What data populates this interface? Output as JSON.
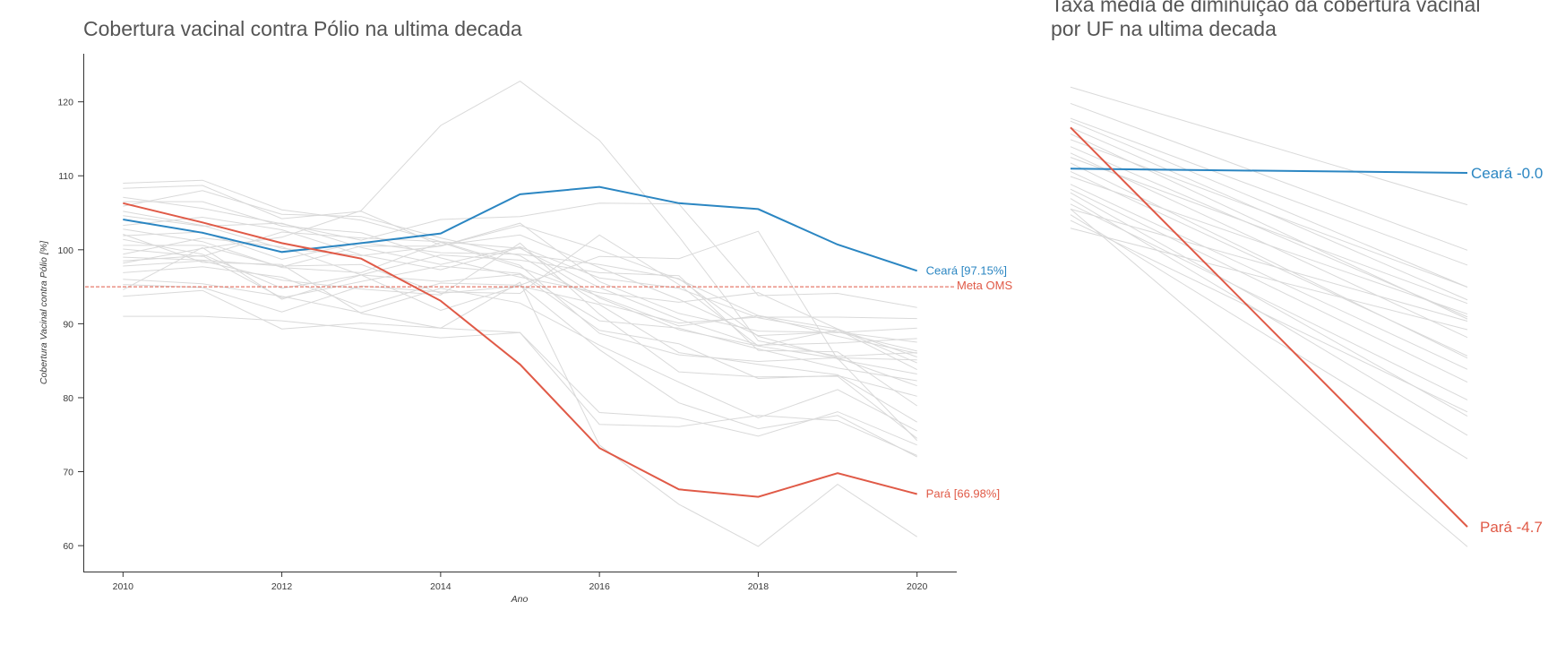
{
  "chart_data": [
    {
      "type": "line",
      "title": "Cobertura vacinal contra Pólio na ultima decada",
      "xlabel": "Ano",
      "ylabel": "Cobertura Vacinal contra Pólio [%]",
      "x": [
        2010,
        2011,
        2012,
        2013,
        2014,
        2015,
        2016,
        2017,
        2018,
        2019,
        2020
      ],
      "xticks": [
        2010,
        2012,
        2014,
        2016,
        2018,
        2020
      ],
      "yticks": [
        60,
        70,
        80,
        90,
        100,
        110,
        120
      ],
      "xlim": [
        2009.5,
        2020.5
      ],
      "ylim": [
        56.5,
        126.5
      ],
      "grid": false,
      "reference_line": {
        "y": 95,
        "label": "Meta OMS",
        "color": "#e05a47"
      },
      "highlight_series": [
        {
          "name": "Ceará",
          "label": "Ceará [97.15%]",
          "color": "#2b86c2",
          "values": [
            104.1,
            102.3,
            99.7,
            100.9,
            102.2,
            107.5,
            108.5,
            106.3,
            105.5,
            100.7,
            97.15
          ]
        },
        {
          "name": "Pará",
          "label": "Pará [66.98%]",
          "color": "#e05a47",
          "values": [
            106.3,
            103.7,
            100.9,
            98.8,
            93.1,
            84.5,
            73.2,
            67.6,
            66.6,
            69.8,
            66.98
          ]
        }
      ],
      "background_color": "#d9d9d9",
      "background_series": [
        [
          109.0,
          109.4,
          105.4,
          104.0,
          101.1,
          100.2,
          94.9,
          90.6,
          87.1,
          87.4,
          88.0
        ],
        [
          108.3,
          108.7,
          104.2,
          105.2,
          100.6,
          102.0,
          97.6,
          93.3,
          88.4,
          88.9,
          86.3
        ],
        [
          107.1,
          105.6,
          103.5,
          101.3,
          104.1,
          104.5,
          106.3,
          106.2,
          93.8,
          94.1,
          92.2
        ],
        [
          106.5,
          106.5,
          103.2,
          102.3,
          98.9,
          96.3,
          94.2,
          92.9,
          94.2,
          89.3,
          84.7
        ],
        [
          105.9,
          108.0,
          104.8,
          104.5,
          101.6,
          99.2,
          92.8,
          90.1,
          90.9,
          90.9,
          90.7
        ],
        [
          105.2,
          103.3,
          100.2,
          99.2,
          100.5,
          103.3,
          100.0,
          96.0,
          91.1,
          89.3,
          85.5
        ],
        [
          104.6,
          103.2,
          103.6,
          100.3,
          98.0,
          100.4,
          96.2,
          94.8,
          90.8,
          88.9,
          87.5
        ],
        [
          103.3,
          104.4,
          102.7,
          99.3,
          97.3,
          100.3,
          93.5,
          89.2,
          87.0,
          89.2,
          83.8
        ],
        [
          102.8,
          101.1,
          97.6,
          96.9,
          101.0,
          97.6,
          93.7,
          89.7,
          91.1,
          88.3,
          86.0
        ],
        [
          101.9,
          102.4,
          98.7,
          101.0,
          99.6,
          99.4,
          98.0,
          96.1,
          88.3,
          85.4,
          81.6
        ],
        [
          101.4,
          99.4,
          94.8,
          96.6,
          99.3,
          98.6,
          96.9,
          96.5,
          86.4,
          86.2,
          78.9
        ],
        [
          100.6,
          100.6,
          97.7,
          100.5,
          100.5,
          103.6,
          95.7,
          91.4,
          89.0,
          88.8,
          89.4
        ],
        [
          100.1,
          99.1,
          102.4,
          101.6,
          101.1,
          97.9,
          88.7,
          85.8,
          84.9,
          85.4,
          85.1
        ],
        [
          99.4,
          101.6,
          100.4,
          96.6,
          95.7,
          96.7,
          89.1,
          87.3,
          82.6,
          83.0,
          80.2
        ],
        [
          99.0,
          98.6,
          97.8,
          98.0,
          94.1,
          95.1,
          92.6,
          86.1,
          84.5,
          83.1,
          76.7
        ],
        [
          98.5,
          99.2,
          93.5,
          95.7,
          97.8,
          96.8,
          90.4,
          89.4,
          86.6,
          84.0,
          82.3
        ],
        [
          97.8,
          98.5,
          95.9,
          94.7,
          93.9,
          100.9,
          91.3,
          83.5,
          82.8,
          82.9,
          74.5
        ],
        [
          96.9,
          97.7,
          96.3,
          92.3,
          95.5,
          95.2,
          86.5,
          79.3,
          75.8,
          77.6,
          72.0
        ],
        [
          96.0,
          95.4,
          93.7,
          91.5,
          94.8,
          92.8,
          87.1,
          82.1,
          77.3,
          81.1,
          75.5
        ],
        [
          95.3,
          94.9,
          91.6,
          95.1,
          94.3,
          94.1,
          102.0,
          95.3,
          87.0,
          85.3,
          74.2
        ],
        [
          93.7,
          94.5,
          89.3,
          90.1,
          89.4,
          88.8,
          78.0,
          77.3,
          74.8,
          78.1,
          73.6
        ],
        [
          91.0,
          91.0,
          90.4,
          89.3,
          88.1,
          88.8,
          76.4,
          76.1,
          77.6,
          76.9,
          72.2
        ],
        [
          98.2,
          100.2,
          101.7,
          105.3,
          116.8,
          122.8,
          114.8,
          101.8,
          87.7,
          85.6,
          86.1
        ],
        [
          94.6,
          100.3,
          93.3,
          96.6,
          91.8,
          95.2,
          99.1,
          98.8,
          102.5,
          85.2,
          83.2
        ],
        [
          102.1,
          98.3,
          98.0,
          91.4,
          89.4,
          95.6,
          73.6,
          65.6,
          59.9,
          68.3,
          61.2
        ]
      ]
    },
    {
      "type": "line",
      "title": "Taxa média de diminuição da cobertura vacinal por UF na ultima decada",
      "title_lines": [
        "Taxa média de diminuição da cobertura vacinal",
        "por UF na ultima decada"
      ],
      "x": [
        0,
        1
      ],
      "ylim": [
        57,
        130
      ],
      "grid": false,
      "axes_visible": false,
      "highlight_series": [
        {
          "name": "Ceará",
          "label": "Ceará -0.0",
          "color": "#2b86c2",
          "values": [
            113.8,
            113.2
          ]
        },
        {
          "name": "Pará",
          "label": "Pará -4.7",
          "color": "#e05a47",
          "values": [
            119.6,
            63.3
          ]
        }
      ],
      "background_color": "#d9d9d9",
      "background_series": [
        [
          125.3,
          108.7
        ],
        [
          123.0,
          102.3
        ],
        [
          120.9,
          100.2
        ],
        [
          120.5,
          97.1
        ],
        [
          119.6,
          95.3
        ],
        [
          118.7,
          92.6
        ],
        [
          117.9,
          97.1
        ],
        [
          116.9,
          92.9
        ],
        [
          116.0,
          90.0
        ],
        [
          115.4,
          94.8
        ],
        [
          114.6,
          87.1
        ],
        [
          113.4,
          87.4
        ],
        [
          112.7,
          93.3
        ],
        [
          111.6,
          85.5
        ],
        [
          110.9,
          83.7
        ],
        [
          110.4,
          78.9
        ],
        [
          109.6,
          76.2
        ],
        [
          108.8,
          81.2
        ],
        [
          108.1,
          92.3
        ],
        [
          107.3,
          72.9
        ],
        [
          106.5,
          79.5
        ],
        [
          105.4,
          91.1
        ],
        [
          108.1,
          60.5
        ]
      ]
    }
  ]
}
